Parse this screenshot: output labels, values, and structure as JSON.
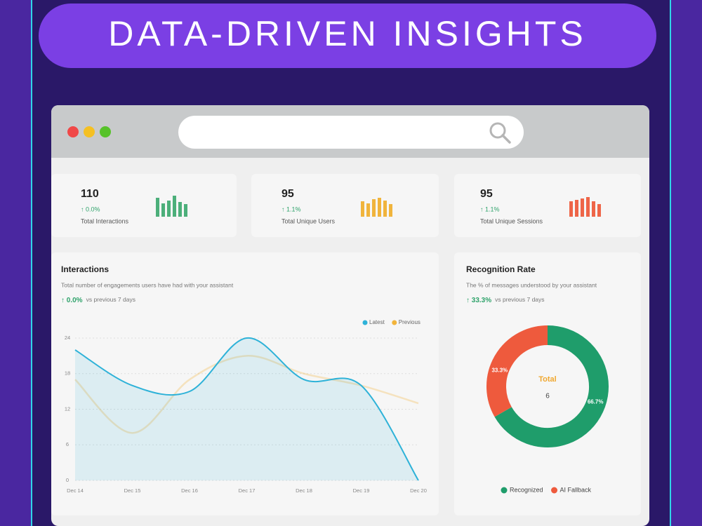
{
  "banner": {
    "title": "DATA-DRIVEN INSIGHTS"
  },
  "kpis": [
    {
      "value": 110,
      "change": "↑ 0.0%",
      "label": "Total Interactions"
    },
    {
      "value": 95,
      "change": "↑ 1.1%",
      "label": "Total Unique Users"
    },
    {
      "value": 95,
      "change": "↑ 1.1%",
      "label": "Total Unique Sessions"
    }
  ],
  "chart_data": [
    {
      "type": "line",
      "title": "Interactions",
      "subtitle": "Total number of engagements users have had with your assistant",
      "change": "↑ 0.0%",
      "change_note": "vs previous 7 days",
      "categories": [
        "Dec 14",
        "Dec 15",
        "Dec 16",
        "Dec 17",
        "Dec 18",
        "Dec 19",
        "Dec 20"
      ],
      "series": [
        {
          "name": "Latest",
          "color": "#2eb2d8",
          "values": [
            22,
            16,
            15,
            24,
            17,
            16,
            0
          ]
        },
        {
          "name": "Previous",
          "color": "#f2b43a",
          "values": [
            17,
            8,
            17,
            21,
            18,
            16,
            13
          ]
        }
      ],
      "ylim": [
        0,
        24
      ],
      "yticks": [
        0,
        6,
        12,
        18,
        24
      ],
      "grid": true,
      "legend": "top-right"
    },
    {
      "type": "pie",
      "title": "Recognition Rate",
      "subtitle": "The % of messages understood by your assistant",
      "change": "↑ 33.3%",
      "change_note": "vs previous 7 days",
      "categories": [
        "Recognized",
        "AI Fallback"
      ],
      "values": [
        66.7,
        33.3
      ],
      "value_labels": [
        "66.7%",
        "33.3%"
      ],
      "colors": [
        "#1f9d6b",
        "#ee5a3d"
      ],
      "center_label": "Total",
      "center_value": 6,
      "legend": "bottom"
    }
  ]
}
